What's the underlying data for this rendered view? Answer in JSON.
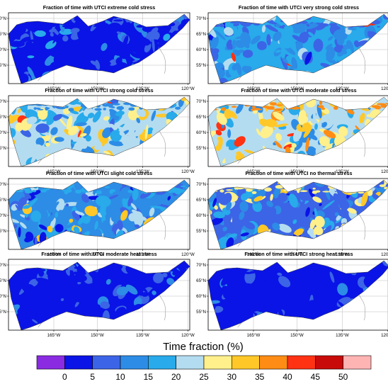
{
  "figure": {
    "panels": [
      {
        "title": "Fraction of time with UTCI extreme cold stress",
        "profile": "extreme_cold"
      },
      {
        "title": "Fraction of time with UTCI very strong cold stress",
        "profile": "very_strong_cold"
      },
      {
        "title": "Fraction of time with UTCI strong cold stress",
        "profile": "strong_cold"
      },
      {
        "title": "Fraction of time with UTCI moderate cold stress",
        "profile": "moderate_cold"
      },
      {
        "title": "Fraction of time with UTCI slight cold stress",
        "profile": "slight_cold"
      },
      {
        "title": "Fraction of time with UTCI no thermal stress",
        "profile": "no_thermal"
      },
      {
        "title": "Fraction of time with UTCI moderate heat stress",
        "profile": "moderate_heat"
      },
      {
        "title": "Fraction of time with UTCI strong heat stress",
        "profile": "strong_heat"
      }
    ],
    "lat_ticks": [
      "70°N",
      "65°N",
      "60°N",
      "55°N"
    ],
    "lon_ticks": [
      "165°W",
      "150°W",
      "135°W",
      "120°W"
    ],
    "colorbar": {
      "title": "Time fraction (%)",
      "labels": [
        "0",
        "5",
        "10",
        "15",
        "20",
        "25",
        "30",
        "35",
        "40",
        "45",
        "50"
      ],
      "colors": [
        "#8a2be2",
        "#0a14e6",
        "#3c64e6",
        "#2d8ce6",
        "#28aaeb",
        "#b4dcf0",
        "#fff08c",
        "#ffc828",
        "#ff8c14",
        "#ff3214",
        "#c80a0a",
        "#ffb4b4"
      ]
    },
    "map_colors": {
      "coastline": "#999999",
      "grid": "#bbbbbb",
      "frame": "#000000"
    }
  }
}
